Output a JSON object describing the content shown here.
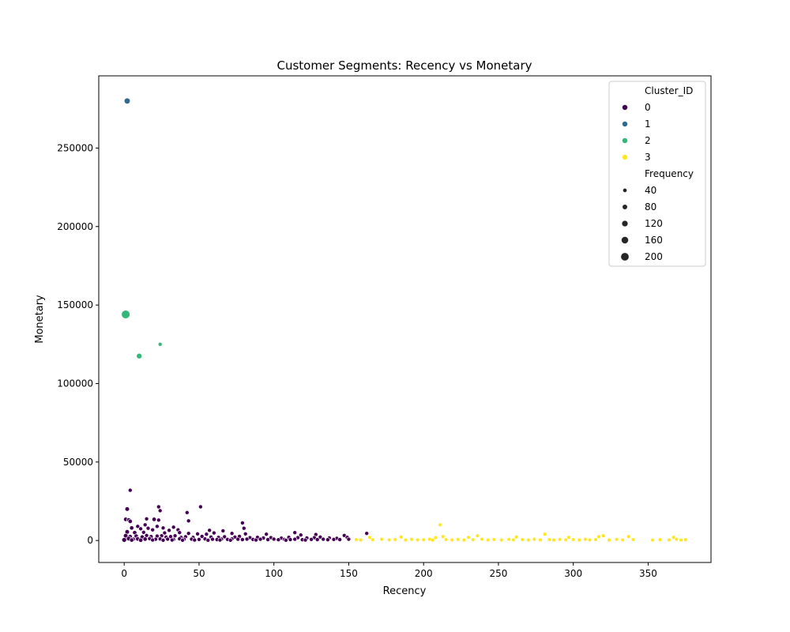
{
  "chart_data": {
    "type": "scatter",
    "title": "Customer Segments: Recency vs Monetary",
    "xlabel": "Recency",
    "ylabel": "Monetary",
    "xlim": [
      -17,
      392
    ],
    "ylim": [
      -14000,
      296000
    ],
    "x_ticks": [
      0,
      50,
      100,
      150,
      200,
      250,
      300,
      350
    ],
    "y_ticks": [
      0,
      50000,
      100000,
      150000,
      200000,
      250000
    ],
    "grid": false,
    "legend": {
      "position": "top-right",
      "hue_title": "Cluster_ID",
      "hue_entries": [
        {
          "label": "0",
          "color": "#440154"
        },
        {
          "label": "1",
          "color": "#31688e"
        },
        {
          "label": "2",
          "color": "#35b779"
        },
        {
          "label": "3",
          "color": "#fde725"
        }
      ],
      "size_title": "Frequency",
      "size_entries": [
        {
          "label": "40",
          "frequency": 40
        },
        {
          "label": "80",
          "frequency": 80
        },
        {
          "label": "120",
          "frequency": 120
        },
        {
          "label": "160",
          "frequency": 160
        },
        {
          "label": "200",
          "frequency": 200
        }
      ]
    },
    "series": [
      {
        "name": "1",
        "color": "#31688e",
        "points": [
          [
            2,
            280000,
            110
          ]
        ]
      },
      {
        "name": "2",
        "color": "#35b779",
        "points": [
          [
            1,
            144000,
            210
          ],
          [
            10,
            117500,
            90
          ],
          [
            24,
            125000,
            30
          ]
        ]
      },
      {
        "name": "0",
        "color": "#440154",
        "points": [
          [
            4,
            32000,
            30
          ],
          [
            2,
            20000,
            50
          ],
          [
            23,
            21500,
            30
          ],
          [
            51,
            21500,
            30
          ],
          [
            24,
            19000,
            30
          ],
          [
            42,
            17800,
            30
          ],
          [
            1,
            13500,
            40
          ],
          [
            3,
            13200,
            30
          ],
          [
            4,
            12200,
            40
          ],
          [
            15,
            13800,
            30
          ],
          [
            20,
            13500,
            40
          ],
          [
            23,
            13000,
            30
          ],
          [
            43,
            12500,
            30
          ],
          [
            79,
            11200,
            30
          ],
          [
            9,
            9000,
            30
          ],
          [
            14,
            10000,
            30
          ],
          [
            22,
            9000,
            30
          ],
          [
            5,
            8000,
            40
          ],
          [
            11,
            7500,
            30
          ],
          [
            16,
            7800,
            30
          ],
          [
            26,
            8000,
            30
          ],
          [
            33,
            8500,
            30
          ],
          [
            19,
            6800,
            30
          ],
          [
            30,
            6500,
            30
          ],
          [
            36,
            6800,
            30
          ],
          [
            57,
            6500,
            30
          ],
          [
            66,
            6200,
            30
          ],
          [
            80,
            7800,
            30
          ],
          [
            2,
            5500,
            50
          ],
          [
            7,
            5000,
            40
          ],
          [
            13,
            5200,
            30
          ],
          [
            27,
            4800,
            30
          ],
          [
            37,
            5000,
            30
          ],
          [
            43,
            4500,
            30
          ],
          [
            49,
            4200,
            30
          ],
          [
            55,
            4000,
            30
          ],
          [
            60,
            4800,
            30
          ],
          [
            72,
            4500,
            30
          ],
          [
            81,
            4200,
            30
          ],
          [
            95,
            4000,
            30
          ],
          [
            114,
            5000,
            30
          ],
          [
            118,
            3500,
            30
          ],
          [
            128,
            3800,
            30
          ],
          [
            147,
            3200,
            30
          ],
          [
            162,
            4500,
            30
          ],
          [
            1,
            3000,
            50
          ],
          [
            4,
            2500,
            40
          ],
          [
            8,
            2800,
            40
          ],
          [
            12,
            2200,
            40
          ],
          [
            15,
            3200,
            30
          ],
          [
            18,
            2500,
            30
          ],
          [
            22,
            2800,
            30
          ],
          [
            25,
            3000,
            30
          ],
          [
            28,
            2200,
            30
          ],
          [
            31,
            2500,
            30
          ],
          [
            34,
            3000,
            30
          ],
          [
            38,
            2000,
            30
          ],
          [
            41,
            2400,
            30
          ],
          [
            46,
            2000,
            30
          ],
          [
            52,
            2600,
            30
          ],
          [
            58,
            2200,
            30
          ],
          [
            63,
            2000,
            30
          ],
          [
            67,
            2400,
            30
          ],
          [
            74,
            2200,
            30
          ],
          [
            77,
            2600,
            30
          ],
          [
            84,
            1800,
            30
          ],
          [
            89,
            2000,
            30
          ],
          [
            93,
            1600,
            30
          ],
          [
            98,
            1800,
            30
          ],
          [
            105,
            1500,
            30
          ],
          [
            110,
            2000,
            30
          ],
          [
            116,
            1800,
            30
          ],
          [
            122,
            1600,
            30
          ],
          [
            127,
            1800,
            30
          ],
          [
            131,
            2200,
            30
          ],
          [
            137,
            1600,
            30
          ],
          [
            142,
            1400,
            30
          ],
          [
            149,
            2000,
            30
          ],
          [
            3,
            1200,
            50
          ],
          [
            6,
            800,
            40
          ],
          [
            9,
            1000,
            40
          ],
          [
            14,
            900,
            40
          ],
          [
            17,
            1200,
            30
          ],
          [
            21,
            800,
            30
          ],
          [
            24,
            1000,
            30
          ],
          [
            29,
            900,
            30
          ],
          [
            33,
            700,
            30
          ],
          [
            37,
            1100,
            30
          ],
          [
            40,
            800,
            30
          ],
          [
            45,
            900,
            30
          ],
          [
            50,
            700,
            30
          ],
          [
            54,
            1000,
            30
          ],
          [
            59,
            800,
            30
          ],
          [
            62,
            600,
            30
          ],
          [
            65,
            900,
            30
          ],
          [
            69,
            700,
            30
          ],
          [
            72,
            1000,
            30
          ],
          [
            76,
            800,
            30
          ],
          [
            79,
            600,
            30
          ],
          [
            82,
            900,
            30
          ],
          [
            86,
            700,
            30
          ],
          [
            91,
            800,
            30
          ],
          [
            96,
            600,
            30
          ],
          [
            100,
            900,
            30
          ],
          [
            103,
            500,
            30
          ],
          [
            107,
            700,
            30
          ],
          [
            111,
            600,
            30
          ],
          [
            114,
            800,
            30
          ],
          [
            119,
            500,
            30
          ],
          [
            125,
            700,
            30
          ],
          [
            129,
            600,
            30
          ],
          [
            133,
            800,
            30
          ],
          [
            136,
            500,
            30
          ],
          [
            140,
            700,
            30
          ],
          [
            144,
            600,
            30
          ],
          [
            150,
            800,
            30
          ],
          [
            0,
            400,
            60
          ],
          [
            5,
            300,
            40
          ],
          [
            11,
            200,
            40
          ],
          [
            19,
            300,
            30
          ],
          [
            26,
            200,
            30
          ],
          [
            32,
            300,
            30
          ],
          [
            39,
            200,
            30
          ],
          [
            47,
            300,
            30
          ],
          [
            56,
            200,
            30
          ],
          [
            64,
            300,
            30
          ],
          [
            71,
            200,
            30
          ],
          [
            88,
            300,
            30
          ],
          [
            108,
            200,
            30
          ],
          [
            121,
            300,
            30
          ]
        ]
      },
      {
        "name": "3",
        "color": "#fde725",
        "points": [
          [
            211,
            10000,
            20
          ],
          [
            164,
            2000,
            20
          ],
          [
            185,
            2200,
            20
          ],
          [
            208,
            1800,
            20
          ],
          [
            213,
            2500,
            20
          ],
          [
            230,
            2000,
            20
          ],
          [
            236,
            3000,
            20
          ],
          [
            262,
            2200,
            20
          ],
          [
            281,
            4000,
            20
          ],
          [
            297,
            2000,
            20
          ],
          [
            317,
            2400,
            20
          ],
          [
            320,
            3000,
            20
          ],
          [
            337,
            2500,
            20
          ],
          [
            367,
            2000,
            20
          ],
          [
            155,
            600,
            20
          ],
          [
            158,
            300,
            20
          ],
          [
            166,
            500,
            20
          ],
          [
            172,
            800,
            20
          ],
          [
            177,
            400,
            20
          ],
          [
            181,
            600,
            20
          ],
          [
            188,
            300,
            20
          ],
          [
            192,
            700,
            20
          ],
          [
            196,
            400,
            20
          ],
          [
            200,
            500,
            20
          ],
          [
            204,
            800,
            20
          ],
          [
            206,
            300,
            20
          ],
          [
            215,
            600,
            20
          ],
          [
            219,
            400,
            20
          ],
          [
            223,
            700,
            20
          ],
          [
            227,
            300,
            20
          ],
          [
            233,
            500,
            20
          ],
          [
            239,
            800,
            20
          ],
          [
            243,
            400,
            20
          ],
          [
            247,
            600,
            20
          ],
          [
            252,
            300,
            20
          ],
          [
            257,
            700,
            20
          ],
          [
            260,
            400,
            20
          ],
          [
            266,
            600,
            20
          ],
          [
            270,
            300,
            20
          ],
          [
            274,
            800,
            20
          ],
          [
            278,
            400,
            20
          ],
          [
            284,
            600,
            20
          ],
          [
            287,
            300,
            20
          ],
          [
            291,
            700,
            20
          ],
          [
            295,
            400,
            20
          ],
          [
            300,
            600,
            20
          ],
          [
            304,
            300,
            20
          ],
          [
            308,
            800,
            20
          ],
          [
            311,
            400,
            20
          ],
          [
            315,
            600,
            20
          ],
          [
            324,
            300,
            20
          ],
          [
            329,
            700,
            20
          ],
          [
            333,
            400,
            20
          ],
          [
            340,
            600,
            20
          ],
          [
            353,
            300,
            20
          ],
          [
            358,
            500,
            20
          ],
          [
            364,
            400,
            20
          ],
          [
            369,
            800,
            20
          ],
          [
            372,
            300,
            20
          ],
          [
            375,
            500,
            20
          ]
        ]
      }
    ]
  }
}
